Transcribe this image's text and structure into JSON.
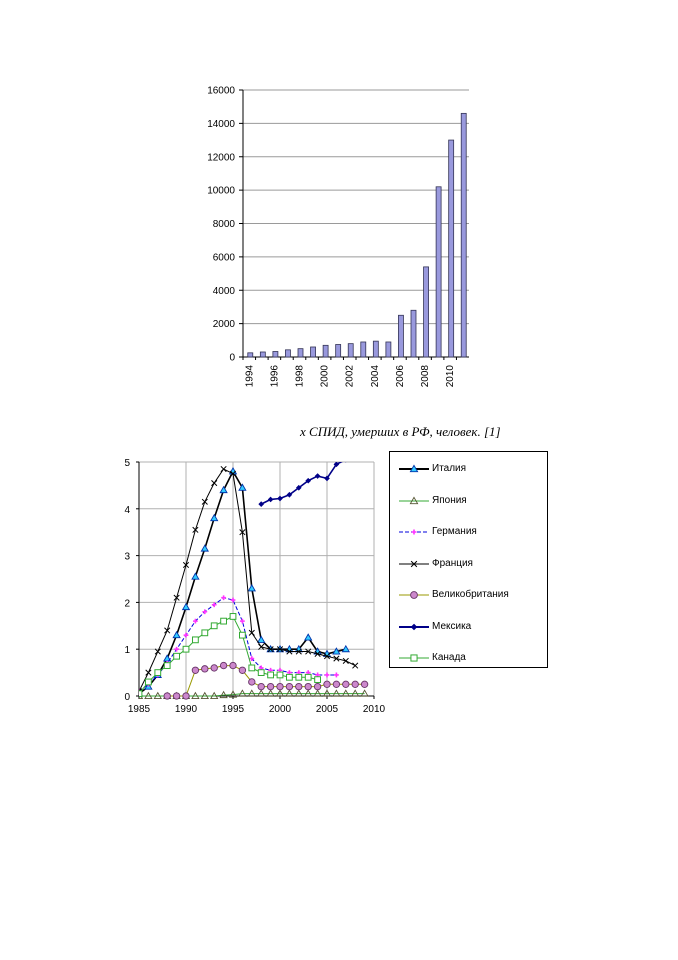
{
  "caption": "х СПИД, умерших в РФ, человек. [1]",
  "chart_data": [
    {
      "type": "bar",
      "categories": [
        "1994",
        "1995",
        "1996",
        "1997",
        "1998",
        "1999",
        "2000",
        "2001",
        "2002",
        "2003",
        "2004",
        "2005",
        "2006",
        "2007",
        "2008",
        "2009",
        "2010",
        "2011"
      ],
      "x_tick_labels": [
        "1994",
        "1996",
        "1998",
        "2000",
        "2002",
        "2004",
        "2006",
        "2008",
        "2010"
      ],
      "values": [
        250,
        300,
        330,
        430,
        500,
        600,
        700,
        750,
        800,
        900,
        950,
        900,
        2500,
        2800,
        5400,
        10200,
        13000,
        14600
      ],
      "ylim": [
        0,
        16000
      ],
      "yticks": [
        0,
        2000,
        4000,
        6000,
        8000,
        10000,
        12000,
        14000,
        16000
      ],
      "grid": true,
      "bar_color": "#9999dd"
    },
    {
      "type": "line",
      "xlim": [
        1985,
        2010
      ],
      "ylim": [
        0,
        5
      ],
      "xticks": [
        1985,
        1990,
        1995,
        2000,
        2005,
        2010
      ],
      "yticks": [
        0,
        1,
        2,
        3,
        4,
        5
      ],
      "grid": true,
      "legend_position": "right",
      "series": [
        {
          "name": "Италия",
          "color": "#000000",
          "marker": "triangle-cyan",
          "points": [
            [
              1985,
              0.05
            ],
            [
              1986,
              0.2
            ],
            [
              1987,
              0.45
            ],
            [
              1988,
              0.8
            ],
            [
              1989,
              1.3
            ],
            [
              1990,
              1.9
            ],
            [
              1991,
              2.55
            ],
            [
              1992,
              3.15
            ],
            [
              1993,
              3.8
            ],
            [
              1994,
              4.4
            ],
            [
              1995,
              4.8
            ],
            [
              1996,
              4.45
            ],
            [
              1997,
              2.3
            ],
            [
              1998,
              1.2
            ],
            [
              1999,
              1.0
            ],
            [
              2000,
              1.0
            ],
            [
              2001,
              1.0
            ],
            [
              2002,
              1.0
            ],
            [
              2003,
              1.25
            ],
            [
              2004,
              0.95
            ],
            [
              2005,
              0.9
            ],
            [
              2006,
              0.95
            ],
            [
              2007,
              1.0
            ]
          ]
        },
        {
          "name": "Япония",
          "color": "#33aa33",
          "marker": "triangle-olive",
          "points": [
            [
              1985,
              0.0
            ],
            [
              1986,
              0.0
            ],
            [
              1987,
              0.0
            ],
            [
              1988,
              0.0
            ],
            [
              1989,
              0.0
            ],
            [
              1990,
              0.0
            ],
            [
              1991,
              0.0
            ],
            [
              1992,
              0.0
            ],
            [
              1993,
              0.0
            ],
            [
              1994,
              0.02
            ],
            [
              1995,
              0.03
            ],
            [
              1996,
              0.05
            ],
            [
              1997,
              0.05
            ],
            [
              1998,
              0.05
            ],
            [
              1999,
              0.05
            ],
            [
              2000,
              0.05
            ],
            [
              2001,
              0.05
            ],
            [
              2002,
              0.05
            ],
            [
              2003,
              0.05
            ],
            [
              2004,
              0.05
            ],
            [
              2005,
              0.05
            ],
            [
              2006,
              0.05
            ],
            [
              2007,
              0.05
            ],
            [
              2008,
              0.05
            ],
            [
              2009,
              0.05
            ]
          ]
        },
        {
          "name": "Германия",
          "color": "#0000dd",
          "marker": "star-magenta",
          "points": [
            [
              1985,
              0.1
            ],
            [
              1986,
              0.25
            ],
            [
              1987,
              0.45
            ],
            [
              1988,
              0.7
            ],
            [
              1989,
              1.0
            ],
            [
              1990,
              1.3
            ],
            [
              1991,
              1.6
            ],
            [
              1992,
              1.8
            ],
            [
              1993,
              1.95
            ],
            [
              1994,
              2.1
            ],
            [
              1995,
              2.05
            ],
            [
              1996,
              1.6
            ],
            [
              1997,
              0.8
            ],
            [
              1998,
              0.6
            ],
            [
              1999,
              0.55
            ],
            [
              2000,
              0.55
            ],
            [
              2001,
              0.5
            ],
            [
              2002,
              0.5
            ],
            [
              2003,
              0.5
            ],
            [
              2004,
              0.45
            ],
            [
              2005,
              0.45
            ],
            [
              2006,
              0.45
            ]
          ]
        },
        {
          "name": "Франция",
          "color": "#000000",
          "marker": "x",
          "points": [
            [
              1985,
              0.1
            ],
            [
              1986,
              0.5
            ],
            [
              1987,
              0.95
            ],
            [
              1988,
              1.4
            ],
            [
              1989,
              2.1
            ],
            [
              1990,
              2.8
            ],
            [
              1991,
              3.55
            ],
            [
              1992,
              4.15
            ],
            [
              1993,
              4.55
            ],
            [
              1994,
              4.85
            ],
            [
              1995,
              4.75
            ],
            [
              1996,
              3.5
            ],
            [
              1997,
              1.35
            ],
            [
              1998,
              1.05
            ],
            [
              1999,
              1.0
            ],
            [
              2000,
              1.0
            ],
            [
              2001,
              0.95
            ],
            [
              2002,
              0.95
            ],
            [
              2003,
              0.95
            ],
            [
              2004,
              0.9
            ],
            [
              2005,
              0.85
            ],
            [
              2006,
              0.8
            ],
            [
              2007,
              0.75
            ],
            [
              2008,
              0.65
            ]
          ]
        },
        {
          "name": "Великобритания",
          "color": "#999900",
          "marker": "circle-purple",
          "points": [
            [
              1988,
              0.0
            ],
            [
              1989,
              0.0
            ],
            [
              1990,
              0.0
            ],
            [
              1991,
              0.55
            ],
            [
              1992,
              0.58
            ],
            [
              1993,
              0.6
            ],
            [
              1994,
              0.65
            ],
            [
              1995,
              0.65
            ],
            [
              1996,
              0.55
            ],
            [
              1997,
              0.3
            ],
            [
              1998,
              0.2
            ],
            [
              1999,
              0.2
            ],
            [
              2000,
              0.2
            ],
            [
              2001,
              0.2
            ],
            [
              2002,
              0.2
            ],
            [
              2003,
              0.2
            ],
            [
              2004,
              0.2
            ],
            [
              2005,
              0.25
            ],
            [
              2006,
              0.25
            ],
            [
              2007,
              0.25
            ],
            [
              2008,
              0.25
            ],
            [
              2009,
              0.25
            ]
          ]
        },
        {
          "name": "Мексика",
          "color": "#000088",
          "marker": "diamond-navy",
          "points": [
            [
              1998,
              4.1
            ],
            [
              1999,
              4.2
            ],
            [
              2000,
              4.22
            ],
            [
              2001,
              4.3
            ],
            [
              2002,
              4.45
            ],
            [
              2003,
              4.6
            ],
            [
              2004,
              4.7
            ],
            [
              2005,
              4.65
            ],
            [
              2006,
              4.95
            ],
            [
              2007,
              5.05
            ],
            [
              2008,
              5.15
            ]
          ]
        },
        {
          "name": "Канада",
          "color": "#33aa33",
          "marker": "square-green",
          "points": [
            [
              1985,
              0.05
            ],
            [
              1986,
              0.3
            ],
            [
              1987,
              0.5
            ],
            [
              1988,
              0.65
            ],
            [
              1989,
              0.85
            ],
            [
              1990,
              1.0
            ],
            [
              1991,
              1.2
            ],
            [
              1992,
              1.35
            ],
            [
              1993,
              1.5
            ],
            [
              1994,
              1.6
            ],
            [
              1995,
              1.7
            ],
            [
              1996,
              1.3
            ],
            [
              1997,
              0.6
            ],
            [
              1998,
              0.5
            ],
            [
              1999,
              0.45
            ],
            [
              2000,
              0.45
            ],
            [
              2001,
              0.4
            ],
            [
              2002,
              0.4
            ],
            [
              2003,
              0.4
            ],
            [
              2004,
              0.35
            ]
          ]
        }
      ]
    }
  ]
}
